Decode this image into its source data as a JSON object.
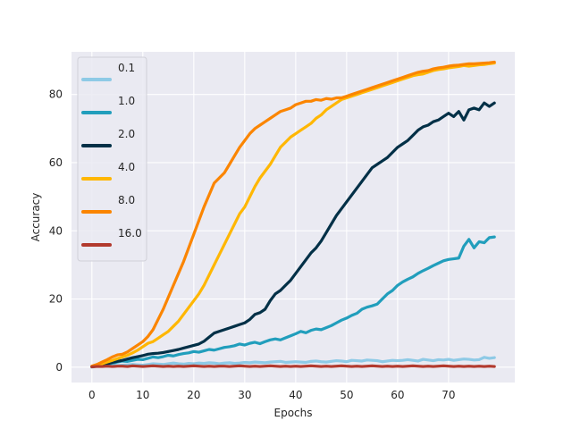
{
  "chart_data": {
    "type": "line",
    "xlabel": "Epochs",
    "ylabel": "Accuracy",
    "xlim": [
      -4,
      83
    ],
    "ylim": [
      -4.5,
      92.5
    ],
    "xticks": [
      0,
      10,
      20,
      30,
      40,
      50,
      60,
      70
    ],
    "yticks": [
      0,
      20,
      40,
      60,
      80
    ],
    "grid": true,
    "legend_position": "upper left",
    "background": "#eaeaf2",
    "series": [
      {
        "name": "0.1",
        "color": "#8ecae6",
        "values": [
          0.0,
          0.3,
          0.5,
          0.8,
          0.7,
          0.5,
          0.6,
          0.7,
          0.8,
          0.7,
          0.6,
          0.8,
          1.0,
          0.9,
          0.8,
          1.0,
          1.2,
          1.0,
          0.9,
          1.1,
          1.0,
          1.2,
          1.1,
          1.3,
          1.2,
          1.0,
          1.2,
          1.3,
          1.1,
          1.2,
          1.4,
          1.3,
          1.5,
          1.4,
          1.3,
          1.5,
          1.6,
          1.7,
          1.4,
          1.5,
          1.6,
          1.5,
          1.4,
          1.7,
          1.8,
          1.6,
          1.5,
          1.7,
          1.9,
          1.8,
          1.6,
          2.0,
          1.9,
          1.8,
          2.1,
          2.0,
          1.9,
          1.6,
          1.8,
          2.0,
          1.9,
          2.0,
          2.2,
          2.0,
          1.8,
          2.3,
          2.1,
          1.9,
          2.2,
          2.1,
          2.3,
          2.0,
          2.2,
          2.4,
          2.3,
          2.1,
          2.2,
          2.9,
          2.6,
          2.8
        ]
      },
      {
        "name": "1.0",
        "color": "#219ebc",
        "values": [
          0.2,
          0.4,
          0.6,
          0.9,
          1.2,
          1.5,
          1.8,
          1.7,
          2.0,
          2.3,
          2.2,
          2.6,
          3.0,
          2.8,
          3.1,
          3.5,
          3.3,
          3.7,
          4.0,
          4.2,
          4.6,
          4.4,
          4.8,
          5.2,
          5.0,
          5.4,
          5.8,
          6.0,
          6.3,
          6.8,
          6.5,
          7.0,
          7.3,
          6.9,
          7.5,
          8.0,
          8.3,
          8.0,
          8.6,
          9.2,
          9.8,
          10.5,
          10.1,
          10.8,
          11.2,
          11.0,
          11.6,
          12.2,
          13.0,
          13.8,
          14.4,
          15.2,
          15.8,
          17.0,
          17.6,
          18.0,
          18.5,
          20.0,
          21.5,
          22.5,
          24.0,
          25.0,
          25.8,
          26.5,
          27.5,
          28.3,
          29.0,
          29.8,
          30.5,
          31.2,
          31.6,
          31.8,
          32.0,
          35.5,
          37.5,
          35.0,
          36.8,
          36.5,
          38.0,
          38.2
        ]
      },
      {
        "name": "2.0",
        "color": "#023047",
        "values": [
          0.1,
          0.3,
          0.6,
          1.0,
          1.4,
          1.7,
          2.0,
          2.4,
          2.8,
          3.1,
          3.4,
          3.8,
          4.0,
          4.1,
          4.3,
          4.6,
          4.9,
          5.2,
          5.6,
          6.0,
          6.4,
          6.8,
          7.6,
          8.8,
          10.0,
          10.5,
          11.0,
          11.5,
          12.0,
          12.5,
          13.0,
          14.0,
          15.5,
          16.0,
          17.0,
          19.5,
          21.5,
          22.5,
          24.0,
          25.5,
          27.5,
          29.5,
          31.5,
          33.5,
          35.0,
          37.0,
          39.5,
          42.0,
          44.5,
          46.5,
          48.5,
          50.5,
          52.5,
          54.5,
          56.5,
          58.5,
          59.5,
          60.5,
          61.5,
          63.0,
          64.5,
          65.5,
          66.5,
          68.0,
          69.5,
          70.5,
          71.0,
          72.0,
          72.5,
          73.5,
          74.5,
          73.5,
          75.0,
          72.5,
          75.5,
          76.0,
          75.5,
          77.5,
          76.5,
          77.5
        ]
      },
      {
        "name": "4.0",
        "color": "#ffb703",
        "values": [
          0.2,
          0.5,
          1.0,
          1.5,
          2.0,
          2.5,
          3.0,
          3.5,
          4.2,
          5.0,
          6.0,
          7.0,
          7.5,
          8.5,
          9.5,
          10.5,
          12.0,
          13.5,
          15.5,
          17.5,
          19.5,
          21.5,
          24.0,
          27.0,
          30.0,
          33.0,
          36.0,
          39.0,
          42.0,
          45.0,
          47.0,
          50.0,
          53.0,
          55.5,
          57.5,
          59.5,
          62.0,
          64.5,
          66.0,
          67.5,
          68.5,
          69.5,
          70.5,
          71.5,
          73.0,
          74.0,
          75.5,
          76.5,
          77.5,
          78.5,
          79.0,
          79.5,
          80.0,
          80.5,
          81.0,
          81.5,
          82.0,
          82.5,
          83.0,
          83.5,
          84.0,
          84.5,
          85.0,
          85.5,
          85.8,
          86.0,
          86.5,
          87.0,
          87.3,
          87.5,
          87.8,
          88.0,
          88.2,
          88.5,
          88.3,
          88.5,
          88.7,
          88.8,
          89.0,
          89.2
        ]
      },
      {
        "name": "8.0",
        "color": "#fb8500",
        "values": [
          0.3,
          0.8,
          1.5,
          2.2,
          3.0,
          3.6,
          3.8,
          4.5,
          5.5,
          6.5,
          7.5,
          9.0,
          11.0,
          14.0,
          17.0,
          20.5,
          24.0,
          27.5,
          31.0,
          35.0,
          39.0,
          43.0,
          47.0,
          50.5,
          54.0,
          55.5,
          57.0,
          59.5,
          62.0,
          64.5,
          66.5,
          68.5,
          70.0,
          71.0,
          72.0,
          73.0,
          74.0,
          75.0,
          75.5,
          76.0,
          77.0,
          77.5,
          78.0,
          78.0,
          78.5,
          78.3,
          78.8,
          78.6,
          79.0,
          79.0,
          79.5,
          80.0,
          80.5,
          81.0,
          81.5,
          82.0,
          82.5,
          83.0,
          83.5,
          84.0,
          84.5,
          85.0,
          85.5,
          86.0,
          86.5,
          86.8,
          87.0,
          87.5,
          87.8,
          88.0,
          88.3,
          88.5,
          88.6,
          88.8,
          89.0,
          89.0,
          89.1,
          89.2,
          89.3,
          89.5
        ]
      },
      {
        "name": "16.0",
        "color": "#b23a2e",
        "values": [
          0.1,
          0.2,
          0.2,
          0.3,
          0.2,
          0.3,
          0.3,
          0.2,
          0.4,
          0.3,
          0.2,
          0.3,
          0.4,
          0.3,
          0.2,
          0.3,
          0.2,
          0.3,
          0.2,
          0.3,
          0.4,
          0.3,
          0.2,
          0.3,
          0.2,
          0.3,
          0.3,
          0.2,
          0.3,
          0.4,
          0.3,
          0.2,
          0.3,
          0.2,
          0.3,
          0.4,
          0.3,
          0.2,
          0.3,
          0.2,
          0.3,
          0.2,
          0.3,
          0.4,
          0.3,
          0.2,
          0.3,
          0.2,
          0.3,
          0.4,
          0.3,
          0.2,
          0.3,
          0.2,
          0.3,
          0.4,
          0.3,
          0.2,
          0.3,
          0.2,
          0.3,
          0.2,
          0.3,
          0.4,
          0.3,
          0.2,
          0.3,
          0.2,
          0.3,
          0.4,
          0.3,
          0.2,
          0.3,
          0.2,
          0.3,
          0.2,
          0.3,
          0.2,
          0.3,
          0.2
        ]
      }
    ]
  }
}
